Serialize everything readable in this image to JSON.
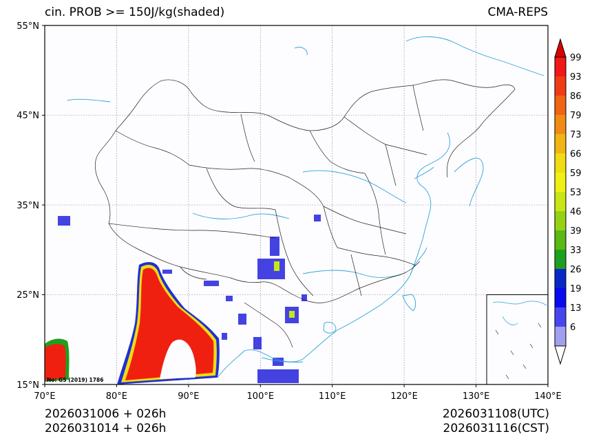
{
  "header": {
    "title_left": "cin. PROB >= 150J/kg(shaded)",
    "title_right": "CMA-REPS"
  },
  "footer": {
    "init_utc": "2026031006  +  026h",
    "init_cst": "2026031014  +  026h",
    "valid_utc": "2026031108(UTC)",
    "valid_cst": "2026031116(CST)"
  },
  "map": {
    "lat_ticks": [
      "55°N",
      "45°N",
      "35°N",
      "25°N",
      "15°N"
    ],
    "lon_ticks": [
      "70°E",
      "80°E",
      "90°E",
      "100°E",
      "110°E",
      "120°E",
      "130°E",
      "140°E"
    ],
    "approval_number": "No: GS (2019) 1786"
  },
  "colorbar": {
    "labels": [
      "99",
      "93",
      "86",
      "79",
      "73",
      "66",
      "59",
      "53",
      "46",
      "39",
      "33",
      "26",
      "19",
      "13",
      "6"
    ],
    "colors": [
      "#f01818",
      "#f03c14",
      "#f06414",
      "#f08c14",
      "#f0b414",
      "#f0dc14",
      "#f0f014",
      "#c8e614",
      "#96d214",
      "#5ab914",
      "#1ea01e",
      "#0a28c8",
      "#0a0af0",
      "#4646f0",
      "#a0a0f0"
    ],
    "top_color": "#dc0000",
    "bottom_color": "#ffffff"
  }
}
